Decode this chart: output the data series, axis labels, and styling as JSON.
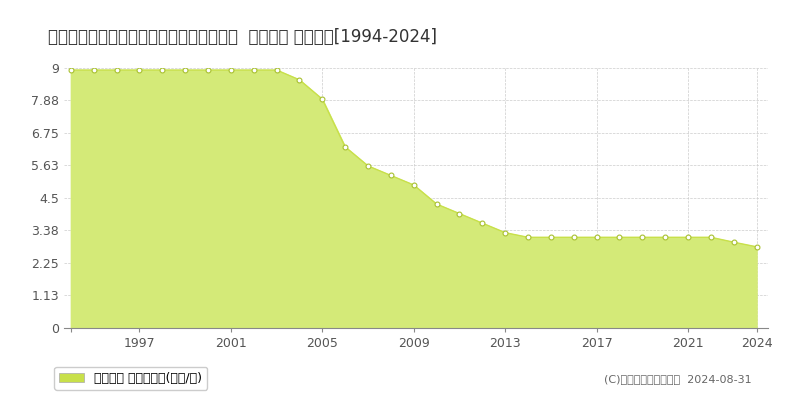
{
  "title": "北海道小樽市オタモイ３丁目３６番２６外  地価公示 地価推移[1994-2024]",
  "years": [
    1994,
    1995,
    1996,
    1997,
    1998,
    1999,
    2000,
    2001,
    2002,
    2003,
    2004,
    2005,
    2006,
    2007,
    2008,
    2009,
    2010,
    2011,
    2012,
    2013,
    2014,
    2015,
    2016,
    2017,
    2018,
    2019,
    2020,
    2021,
    2022,
    2023,
    2024
  ],
  "values": [
    8.93,
    8.93,
    8.93,
    8.93,
    8.93,
    8.93,
    8.93,
    8.93,
    8.93,
    8.93,
    8.59,
    7.92,
    6.27,
    5.61,
    5.28,
    4.95,
    4.29,
    3.96,
    3.63,
    3.3,
    3.14,
    3.14,
    3.14,
    3.14,
    3.14,
    3.14,
    3.14,
    3.14,
    3.14,
    2.97,
    2.81
  ],
  "ylim": [
    0,
    9
  ],
  "yticks": [
    0,
    1.13,
    2.25,
    3.38,
    4.5,
    5.63,
    6.75,
    7.88,
    9
  ],
  "ytick_labels": [
    "0",
    "1.13",
    "2.25",
    "3.38",
    "4.5",
    "5.63",
    "6.75",
    "7.88",
    "9"
  ],
  "xticks": [
    1994,
    1997,
    2001,
    2005,
    2009,
    2013,
    2017,
    2021,
    2024
  ],
  "xtick_labels": [
    "",
    "1997",
    "2001",
    "2005",
    "2009",
    "2013",
    "2017",
    "2021",
    "2024"
  ],
  "line_color": "#c8e04a",
  "fill_color": "#d4ea78",
  "marker_fill": "#ffffff",
  "marker_edge_color": "#a8c030",
  "background_color": "#ffffff",
  "plot_bg_color": "#ffffff",
  "grid_color": "#cccccc",
  "legend_label": "地価公示 平均坪単価(万円/坪)",
  "legend_color": "#c8e04a",
  "copyright_text": "(C)土地価格ドットコム  2024-08-31",
  "title_fontsize": 12,
  "tick_fontsize": 9,
  "legend_fontsize": 9,
  "copyright_fontsize": 8
}
